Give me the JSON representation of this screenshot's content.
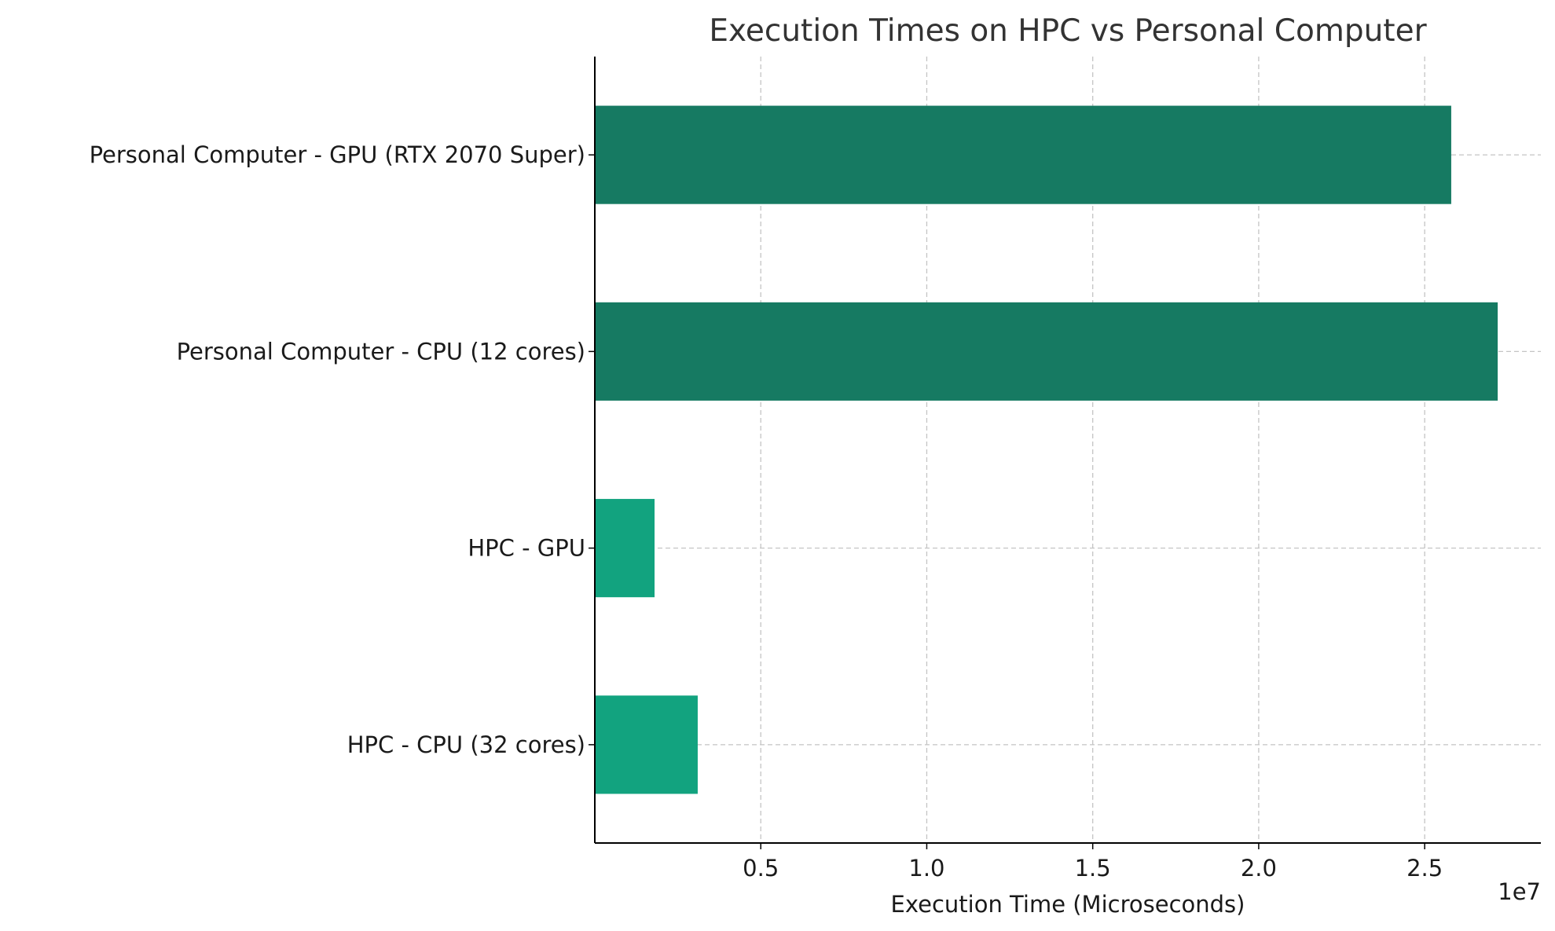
{
  "chart_data": {
    "type": "bar",
    "orientation": "horizontal",
    "title": "Execution Times on HPC vs Personal Computer",
    "xlabel": "Execution Time (Microseconds)",
    "ylabel": "",
    "axis_offset_label": "1e7",
    "xlim": [
      0,
      28500000
    ],
    "xticks": [
      5000000,
      10000000,
      15000000,
      20000000,
      25000000
    ],
    "xtick_labels": [
      "0.5",
      "1.0",
      "1.5",
      "2.0",
      "2.5"
    ],
    "grid": true,
    "categories": [
      "Personal Computer - GPU (RTX 2070 Super)",
      "Personal Computer - CPU (12 cores)",
      "HPC - GPU",
      "HPC - CPU (32 cores)"
    ],
    "values": [
      25800000,
      27200000,
      1800000,
      3100000
    ],
    "colors": [
      "#167a62",
      "#167a62",
      "#12a37f",
      "#12a37f"
    ]
  }
}
